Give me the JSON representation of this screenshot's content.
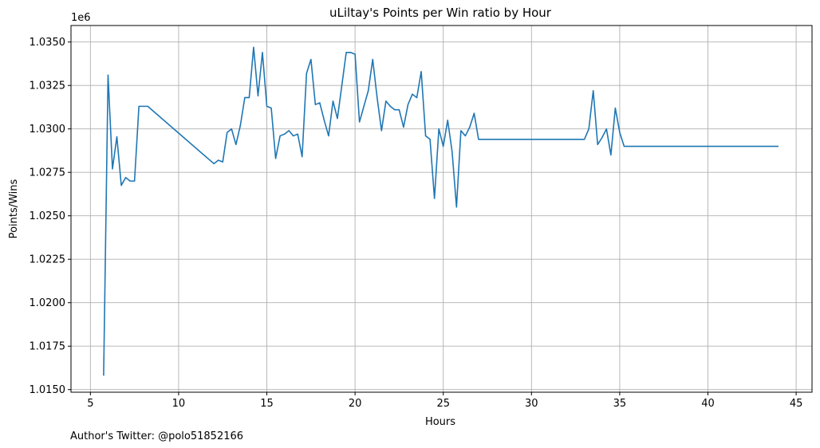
{
  "chart_data": {
    "type": "line",
    "title": "uLiltay's Points per Win ratio by Hour",
    "xlabel": "Hours",
    "ylabel": "Points/Wins",
    "y_offset_label": "1e6",
    "xlim": [
      3.9,
      45.9
    ],
    "ylim": [
      1.01485,
      1.03595
    ],
    "x_ticks": [
      5,
      10,
      15,
      20,
      25,
      30,
      35,
      40,
      45
    ],
    "y_ticks": [
      1.015,
      1.0175,
      1.02,
      1.0225,
      1.025,
      1.0275,
      1.03,
      1.0325,
      1.035
    ],
    "x_tick_labels": [
      "5",
      "10",
      "15",
      "20",
      "25",
      "30",
      "35",
      "40",
      "45"
    ],
    "y_tick_labels": [
      "1.0150",
      "1.0175",
      "1.0200",
      "1.0225",
      "1.0250",
      "1.0275",
      "1.0300",
      "1.0325",
      "1.0350"
    ],
    "grid": true,
    "series": [
      {
        "color": "#1f77b4",
        "x": [
          5.75,
          6.0,
          6.25,
          6.5,
          6.75,
          7.0,
          7.25,
          7.5,
          7.75,
          8.0,
          8.25,
          12.0,
          12.25,
          12.5,
          12.75,
          13.0,
          13.25,
          13.5,
          13.75,
          14.0,
          14.25,
          14.5,
          14.75,
          15.0,
          15.25,
          15.5,
          15.75,
          16.0,
          16.25,
          16.5,
          16.75,
          17.0,
          17.25,
          17.5,
          17.75,
          18.0,
          18.25,
          18.5,
          18.75,
          19.0,
          19.25,
          19.5,
          19.75,
          20.0,
          20.25,
          20.5,
          20.75,
          21.0,
          21.25,
          21.5,
          21.75,
          22.0,
          22.25,
          22.5,
          22.75,
          23.0,
          23.25,
          23.5,
          23.75,
          24.0,
          24.25,
          24.5,
          24.75,
          25.0,
          25.25,
          25.5,
          25.75,
          26.0,
          26.25,
          26.5,
          26.75,
          27.0,
          27.25,
          33.0,
          33.25,
          33.5,
          33.75,
          34.0,
          34.25,
          34.5,
          34.75,
          35.0,
          35.25,
          44.0
        ],
        "y": [
          1.0158,
          1.0331,
          1.0277,
          1.02955,
          1.02675,
          1.0272,
          1.027,
          1.027,
          1.0313,
          1.0313,
          1.0313,
          1.028,
          1.0282,
          1.0281,
          1.0298,
          1.03,
          1.0291,
          1.0302,
          1.0318,
          1.0318,
          1.0347,
          1.0319,
          1.0344,
          1.0313,
          1.0312,
          1.0283,
          1.0296,
          1.0297,
          1.0299,
          1.0296,
          1.0297,
          1.0284,
          1.0332,
          1.034,
          1.0314,
          1.0315,
          1.0305,
          1.0296,
          1.0316,
          1.0306,
          1.0325,
          1.0344,
          1.0344,
          1.0343,
          1.0304,
          1.0313,
          1.0322,
          1.034,
          1.0318,
          1.0299,
          1.0316,
          1.0313,
          1.0311,
          1.0311,
          1.0301,
          1.0314,
          1.032,
          1.0318,
          1.0333,
          1.0296,
          1.0294,
          1.026,
          1.03,
          1.029,
          1.0305,
          1.0287,
          1.0255,
          1.0299,
          1.0296,
          1.0301,
          1.0309,
          1.0294,
          1.0294,
          1.0294,
          1.03,
          1.0322,
          1.0291,
          1.0295,
          1.03,
          1.0285,
          1.0312,
          1.0298,
          1.029,
          1.029
        ]
      }
    ]
  },
  "footer": {
    "author_text": "Author's Twitter: @polo51852166"
  }
}
